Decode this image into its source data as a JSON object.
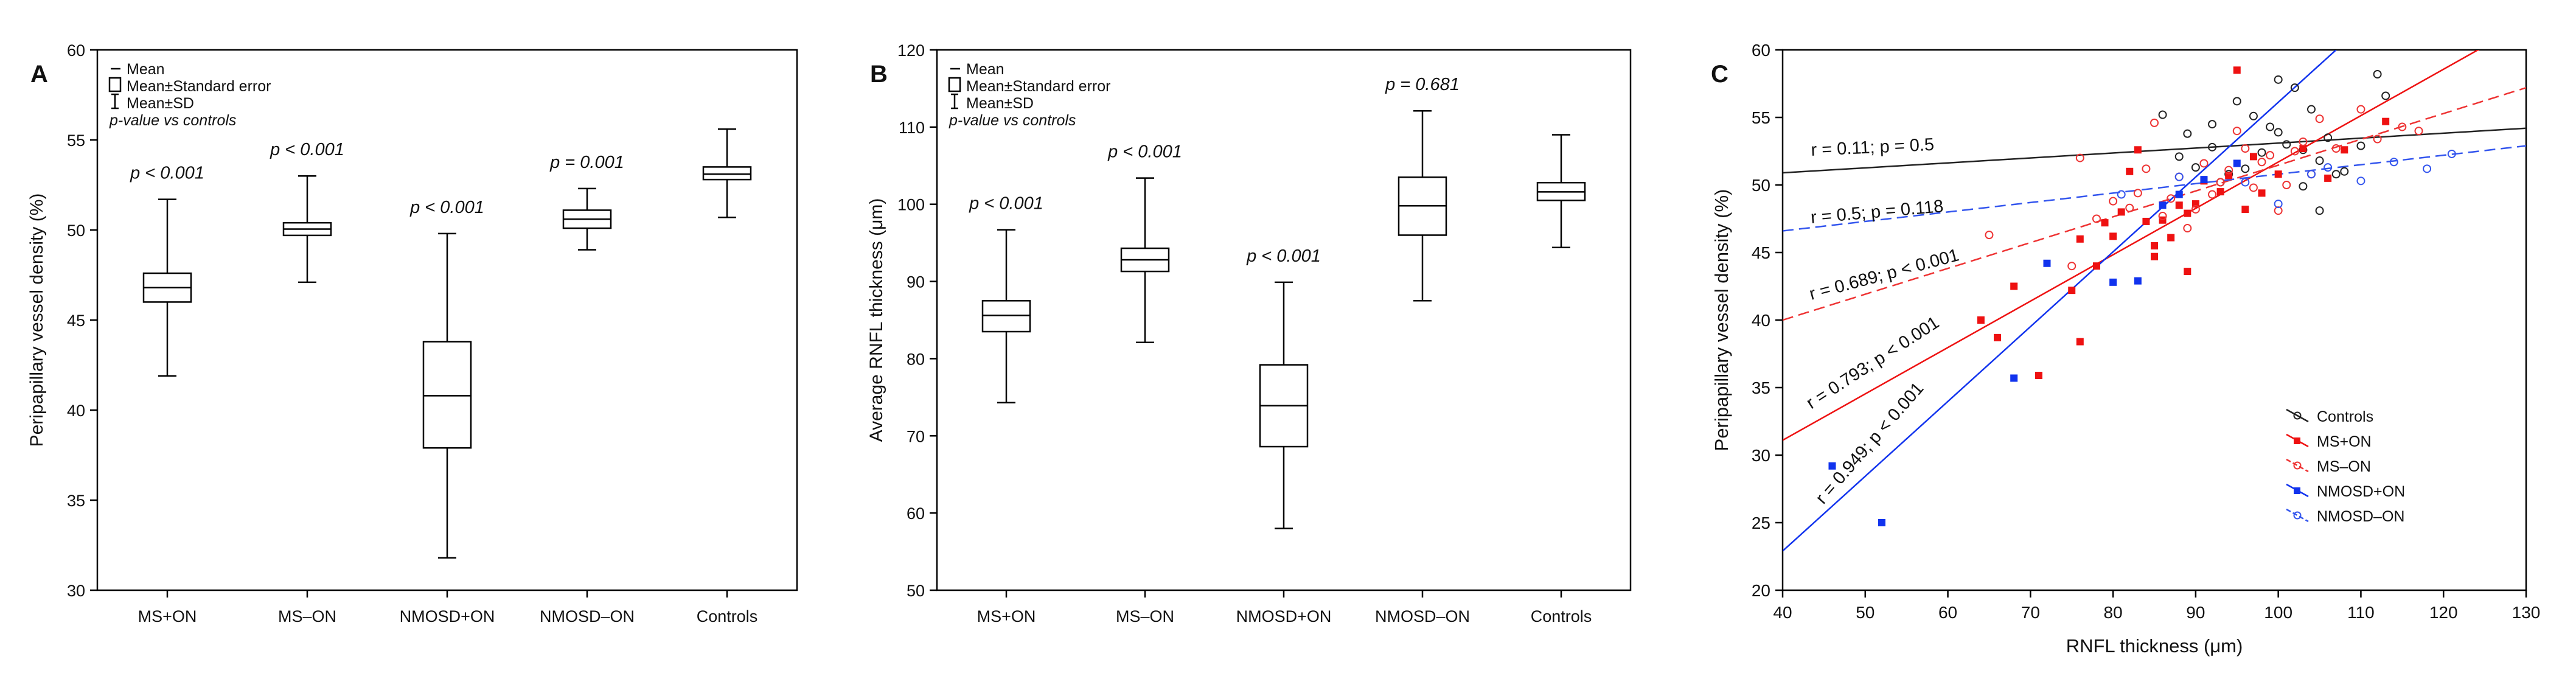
{
  "panels": [
    {
      "letter": "A",
      "type": "boxplot",
      "ylabel": "Peripapillary vessel density (%)",
      "ylim": [
        30,
        60
      ],
      "yticks": [
        30,
        35,
        40,
        45,
        50,
        55,
        60
      ],
      "legend": [
        "Mean",
        "Mean±Standard error",
        "Mean±SD",
        "p-value vs controls"
      ],
      "groups": [
        {
          "name": "MS+ON",
          "mean": 46.8,
          "se_low": 46.0,
          "se_high": 47.6,
          "sd_low": 41.9,
          "sd_high": 51.7,
          "p": "p < 0.001"
        },
        {
          "name": "MS–ON",
          "mean": 50.05,
          "se_low": 49.7,
          "se_high": 50.4,
          "sd_low": 47.1,
          "sd_high": 53.0,
          "p": "p < 0.001"
        },
        {
          "name": "NMOSD+ON",
          "mean": 40.8,
          "se_low": 37.9,
          "se_high": 43.8,
          "sd_low": 31.8,
          "sd_high": 49.8,
          "p": "p < 0.001"
        },
        {
          "name": "NMOSD–ON",
          "mean": 50.6,
          "se_low": 50.1,
          "se_high": 51.1,
          "sd_low": 48.9,
          "sd_high": 52.3,
          "p": "p = 0.001"
        },
        {
          "name": "Controls",
          "mean": 53.1,
          "se_low": 52.8,
          "se_high": 53.5,
          "sd_low": 50.7,
          "sd_high": 55.6,
          "p": ""
        }
      ]
    },
    {
      "letter": "B",
      "type": "boxplot",
      "ylabel": "Average RNFL thickness (μm)",
      "ylim": [
        50,
        120
      ],
      "yticks": [
        50,
        60,
        70,
        80,
        90,
        100,
        110,
        120
      ],
      "legend": [
        "Mean",
        "Mean±Standard error",
        "Mean±SD",
        "p-value vs controls"
      ],
      "groups": [
        {
          "name": "MS+ON",
          "mean": 85.6,
          "se_low": 83.5,
          "se_high": 87.5,
          "sd_low": 74.3,
          "sd_high": 96.7,
          "p": "p < 0.001"
        },
        {
          "name": "MS–ON",
          "mean": 92.8,
          "se_low": 91.3,
          "se_high": 94.3,
          "sd_low": 82.1,
          "sd_high": 103.4,
          "p": "p < 0.001"
        },
        {
          "name": "NMOSD+ON",
          "mean": 73.9,
          "se_low": 68.6,
          "se_high": 79.2,
          "sd_low": 58.0,
          "sd_high": 89.9,
          "p": "p < 0.001"
        },
        {
          "name": "NMOSD–ON",
          "mean": 99.8,
          "se_low": 96.0,
          "se_high": 103.5,
          "sd_low": 87.5,
          "sd_high": 112.1,
          "p": "p = 0.681"
        },
        {
          "name": "Controls",
          "mean": 101.6,
          "se_low": 100.5,
          "se_high": 102.8,
          "sd_low": 94.4,
          "sd_high": 109.0,
          "p": ""
        }
      ]
    }
  ],
  "chart_data": {
    "letter": "C",
    "type": "scatter",
    "xlabel": "RNFL thickness (μm)",
    "ylabel": "Peripapillary vessel density (%)",
    "xlim": [
      40,
      130
    ],
    "ylim": [
      20,
      60
    ],
    "xticks": [
      40,
      50,
      60,
      70,
      80,
      90,
      100,
      110,
      120,
      130
    ],
    "yticks": [
      20,
      25,
      30,
      35,
      40,
      45,
      50,
      55,
      60
    ],
    "series": [
      {
        "name": "Controls",
        "color": "#222222",
        "filled": false,
        "dashed": false,
        "fit": [
          [
            40,
            50.9
          ],
          [
            130,
            54.2
          ]
        ],
        "r_label": "r = 0.11;  p = 0.5",
        "points": [
          [
            86,
            55.2
          ],
          [
            89,
            53.8
          ],
          [
            92,
            54.5
          ],
          [
            95,
            56.2
          ],
          [
            97,
            55.1
          ],
          [
            99,
            54.3
          ],
          [
            100,
            57.8
          ],
          [
            102,
            57.2
          ],
          [
            104,
            55.6
          ],
          [
            103,
            52.6
          ],
          [
            101,
            53.0
          ],
          [
            98,
            52.4
          ],
          [
            96,
            51.2
          ],
          [
            94,
            50.8
          ],
          [
            92,
            52.8
          ],
          [
            90,
            51.3
          ],
          [
            88,
            52.1
          ],
          [
            105,
            51.8
          ],
          [
            106,
            53.5
          ],
          [
            108,
            51.0
          ],
          [
            110,
            52.9
          ],
          [
            112,
            58.2
          ],
          [
            113,
            56.6
          ],
          [
            105,
            48.1
          ],
          [
            103,
            49.9
          ],
          [
            100,
            53.9
          ],
          [
            93,
            50.2
          ],
          [
            107,
            50.8
          ]
        ]
      },
      {
        "name": "MS+ON",
        "color": "#ee1111",
        "filled": true,
        "dashed": false,
        "fit": [
          [
            40,
            31.1
          ],
          [
            130,
            62.0
          ]
        ],
        "r_label": "r = 0.793;  p < 0.001",
        "points": [
          [
            64,
            40.0
          ],
          [
            66,
            38.7
          ],
          [
            68,
            42.5
          ],
          [
            71,
            35.9
          ],
          [
            75,
            42.2
          ],
          [
            76,
            38.4
          ],
          [
            76,
            46.0
          ],
          [
            78,
            44.0
          ],
          [
            79,
            47.2
          ],
          [
            80,
            46.2
          ],
          [
            81,
            48.0
          ],
          [
            82,
            51.0
          ],
          [
            83,
            52.6
          ],
          [
            84,
            47.3
          ],
          [
            85,
            44.7
          ],
          [
            86,
            47.4
          ],
          [
            87,
            46.1
          ],
          [
            88,
            48.5
          ],
          [
            89,
            43.6
          ],
          [
            89,
            47.9
          ],
          [
            90,
            48.6
          ],
          [
            91,
            50.3
          ],
          [
            93,
            49.5
          ],
          [
            94,
            50.7
          ],
          [
            95,
            58.5
          ],
          [
            96,
            48.2
          ],
          [
            97,
            52.1
          ],
          [
            98,
            49.4
          ],
          [
            100,
            50.8
          ],
          [
            103,
            52.7
          ],
          [
            106,
            50.5
          ],
          [
            108,
            52.6
          ],
          [
            113,
            54.7
          ],
          [
            85,
            45.5
          ]
        ]
      },
      {
        "name": "MS–ON",
        "color": "#ee3333",
        "filled": false,
        "dashed": true,
        "fit": [
          [
            40,
            40.0
          ],
          [
            130,
            57.2
          ]
        ],
        "r_label": "r = 0.689;  p < 0.001",
        "points": [
          [
            65,
            46.3
          ],
          [
            75,
            44.0
          ],
          [
            76,
            52.0
          ],
          [
            78,
            47.5
          ],
          [
            80,
            48.8
          ],
          [
            82,
            48.3
          ],
          [
            83,
            49.4
          ],
          [
            84,
            51.2
          ],
          [
            85,
            54.6
          ],
          [
            86,
            47.7
          ],
          [
            87,
            49.0
          ],
          [
            88,
            50.6
          ],
          [
            89,
            46.8
          ],
          [
            90,
            48.2
          ],
          [
            91,
            51.6
          ],
          [
            92,
            49.3
          ],
          [
            93,
            50.2
          ],
          [
            94,
            51.1
          ],
          [
            95,
            54.0
          ],
          [
            96,
            52.7
          ],
          [
            97,
            49.8
          ],
          [
            98,
            51.7
          ],
          [
            99,
            52.2
          ],
          [
            100,
            48.1
          ],
          [
            101,
            50.0
          ],
          [
            102,
            52.5
          ],
          [
            103,
            53.2
          ],
          [
            104,
            50.8
          ],
          [
            105,
            54.9
          ],
          [
            107,
            52.7
          ],
          [
            110,
            55.6
          ],
          [
            112,
            53.4
          ],
          [
            115,
            54.3
          ],
          [
            117,
            54.0
          ]
        ]
      },
      {
        "name": "NMOSD+ON",
        "color": "#1133ee",
        "filled": true,
        "dashed": false,
        "fit": [
          [
            40,
            22.9
          ],
          [
            107,
            60.0
          ]
        ],
        "r_label": "r = 0.949;  p < 0.001",
        "points": [
          [
            46,
            29.2
          ],
          [
            52,
            25.0
          ],
          [
            68,
            35.7
          ],
          [
            72,
            44.2
          ],
          [
            80,
            42.8
          ],
          [
            83,
            42.9
          ],
          [
            86,
            48.5
          ],
          [
            88,
            49.3
          ],
          [
            91,
            50.4
          ],
          [
            95,
            51.6
          ]
        ]
      },
      {
        "name": "NMOSD–ON",
        "color": "#3355ee",
        "filled": false,
        "dashed": true,
        "fit": [
          [
            40,
            46.6
          ],
          [
            130,
            52.9
          ]
        ],
        "r_label": "r = 0.5;  p = 0.118",
        "points": [
          [
            81,
            49.3
          ],
          [
            88,
            50.6
          ],
          [
            96,
            50.2
          ],
          [
            100,
            48.6
          ],
          [
            104,
            50.8
          ],
          [
            106,
            51.3
          ],
          [
            110,
            50.3
          ],
          [
            114,
            51.7
          ],
          [
            118,
            51.2
          ],
          [
            121,
            52.3
          ]
        ]
      }
    ]
  }
}
